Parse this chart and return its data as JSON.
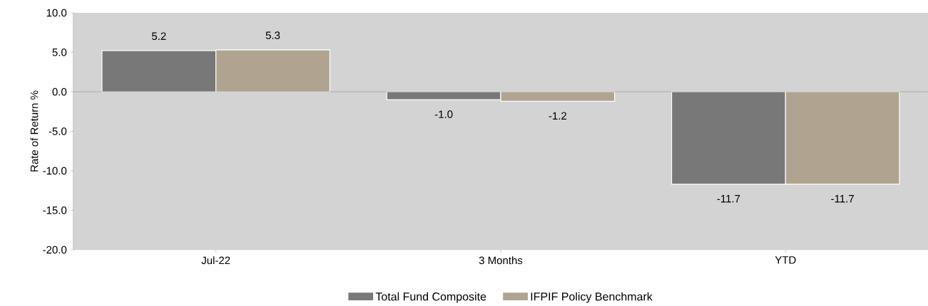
{
  "chart_data": {
    "type": "bar",
    "ylabel": "Rate of Return %",
    "categories": [
      "Jul-22",
      "3 Months",
      "YTD"
    ],
    "series": [
      {
        "name": "Total Fund Composite",
        "color": "#787878",
        "values": [
          5.2,
          -1.0,
          -11.7
        ],
        "value_labels": [
          "5.2",
          "-1.0",
          "-11.7"
        ]
      },
      {
        "name": "IFPIF Policy Benchmark",
        "color": "#b0a490",
        "values": [
          5.3,
          -1.2,
          -11.7
        ],
        "value_labels": [
          "5.3",
          "-1.2",
          "-11.7"
        ]
      }
    ],
    "ylim": [
      -20,
      10
    ],
    "yticks": [
      {
        "value": -20,
        "label": "-20.0"
      },
      {
        "value": -15,
        "label": "-15.0"
      },
      {
        "value": -10,
        "label": "-10.0"
      },
      {
        "value": -5,
        "label": "-5.0"
      },
      {
        "value": 0,
        "label": "0.0"
      },
      {
        "value": 5,
        "label": "5.0"
      },
      {
        "value": 10,
        "label": "10.0"
      }
    ],
    "legend": "bottom"
  }
}
